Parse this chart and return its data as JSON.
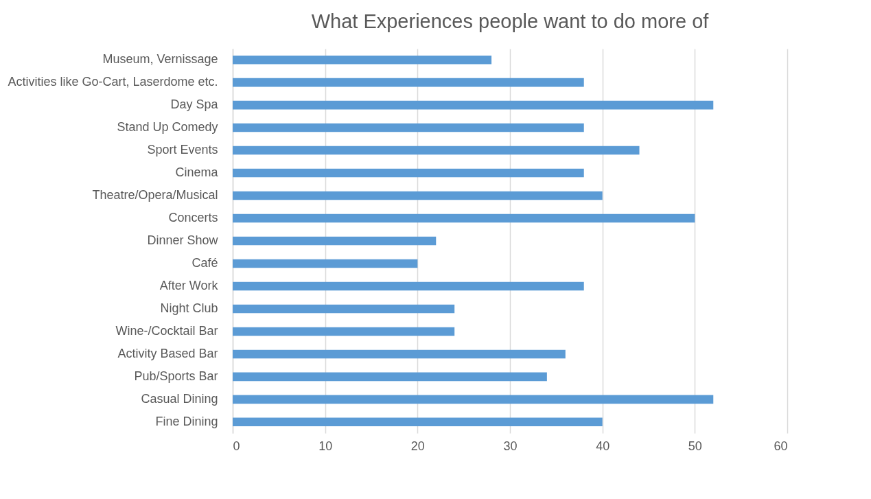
{
  "chart_data": {
    "type": "bar",
    "orientation": "horizontal",
    "title": "What Experiences people want to do more of",
    "categories": [
      "Museum, Vernissage",
      "Activities like Go-Cart, Laserdome etc.",
      "Day Spa",
      "Stand Up Comedy",
      "Sport Events",
      "Cinema",
      "Theatre/Opera/Musical",
      "Concerts",
      "Dinner Show",
      "Café",
      "After Work",
      "Night Club",
      "Wine-/Cocktail Bar",
      "Activity Based Bar",
      "Pub/Sports Bar",
      "Casual Dining",
      "Fine Dining"
    ],
    "values": [
      28,
      38,
      52,
      38,
      44,
      38,
      40,
      50,
      22,
      20,
      38,
      24,
      24,
      36,
      34,
      52,
      40
    ],
    "color": "#5b9bd5",
    "xlim": [
      0,
      60
    ],
    "xticks": [
      0,
      10,
      20,
      30,
      40,
      50,
      60
    ],
    "grid": "x"
  }
}
